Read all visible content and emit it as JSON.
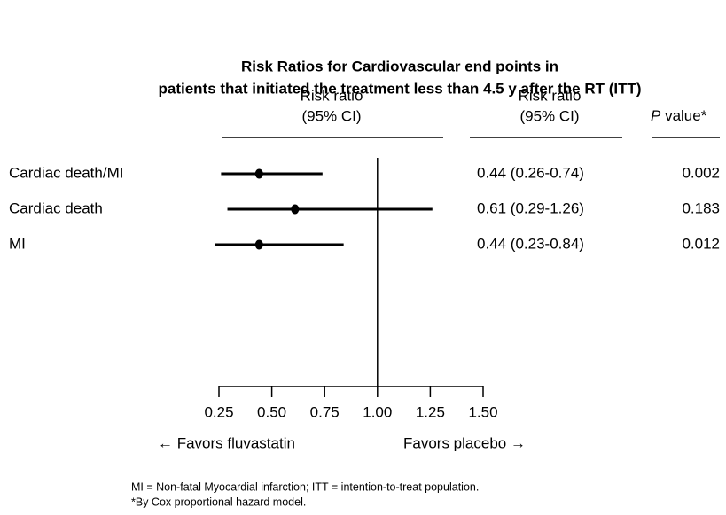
{
  "chart_data": {
    "type": "forest",
    "title": [
      "Risk Ratios for Cardiovascular end points in",
      "patients that initiated the treatment less than 4.5 y after the RT (ITT)"
    ],
    "column_headers": {
      "plot": [
        "Risk ratio",
        "(95% CI)"
      ],
      "ci": [
        "Risk ratio",
        "(95% CI)"
      ],
      "p": [
        "P",
        "value*"
      ]
    },
    "categories": [
      "Cardiac death/MI",
      "Cardiac death",
      "MI"
    ],
    "values": [
      0.44,
      0.61,
      0.44
    ],
    "ci_lower": [
      0.26,
      0.29,
      0.23
    ],
    "ci_upper": [
      0.74,
      1.26,
      0.84
    ],
    "value_labels": [
      "0.44 (0.26-0.74)",
      "0.61 (0.29-1.26)",
      "0.44 (0.23-0.84)"
    ],
    "p_values": [
      0.002,
      0.183,
      0.012
    ],
    "reference_line": 1,
    "xlim": [
      0.25,
      1.5
    ],
    "xticks": [
      0.25,
      {
        "value": 0.5,
        "label": "0.50"
      },
      0.75,
      {
        "value": 1,
        "label": "1.00"
      },
      1.25,
      {
        "value": 1.5,
        "label": "1.50"
      }
    ],
    "favors": [
      "← Favors fluvastatin",
      "Favors placebo →"
    ],
    "footnotes": [
      "MI = Non-fatal Myocardial infarction; ITT = intention-to-treat population.",
      "*By Cox proportional hazard model."
    ],
    "color": "#000000"
  }
}
